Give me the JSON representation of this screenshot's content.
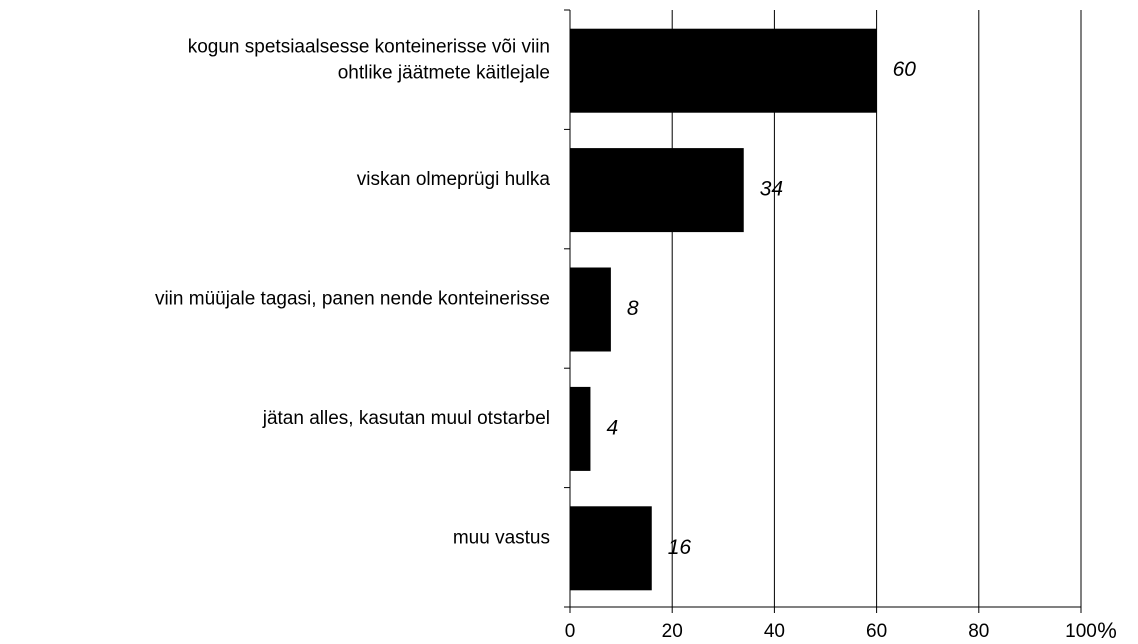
{
  "chart_data": {
    "type": "barh",
    "categories": [
      "kogun spetsiaalsesse konteinerisse või viin\nohtlike jäätmete käitlejale",
      "viskan olmeprügi hulka",
      "viin müüjale tagasi, panen nende konteinerisse",
      "jätan alles, kasutan muul otstarbel",
      "muu vastus"
    ],
    "values": [
      60,
      34,
      8,
      4,
      16
    ],
    "color": "#000000",
    "xlabel": "%",
    "xlim": [
      0,
      100
    ],
    "xticks": [
      0,
      20,
      40,
      60,
      80,
      100
    ],
    "grid": true
  }
}
